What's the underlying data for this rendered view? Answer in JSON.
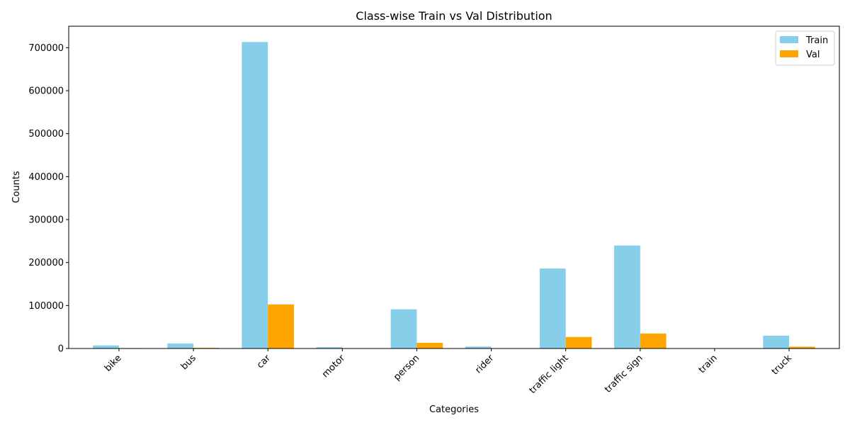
{
  "chart_data": {
    "type": "bar",
    "title": "Class-wise Train vs Val Distribution",
    "xlabel": "Categories",
    "ylabel": "Counts",
    "categories": [
      "bike",
      "bus",
      "car",
      "motor",
      "person",
      "rider",
      "traffic light",
      "traffic sign",
      "train",
      "truck"
    ],
    "series": [
      {
        "name": "Train",
        "color": "#87CEEB",
        "values": [
          7200,
          11700,
          713200,
          3000,
          91300,
          4500,
          186100,
          239700,
          140,
          29900
        ]
      },
      {
        "name": "Val",
        "color": "#FFA500",
        "values": [
          1000,
          1600,
          102500,
          450,
          13300,
          650,
          26900,
          34900,
          15,
          4200
        ]
      }
    ],
    "ylim": [
      0,
      750000
    ],
    "yticks": [
      0,
      100000,
      200000,
      300000,
      400000,
      500000,
      600000,
      700000
    ],
    "legend": "top-right",
    "grid": false
  }
}
